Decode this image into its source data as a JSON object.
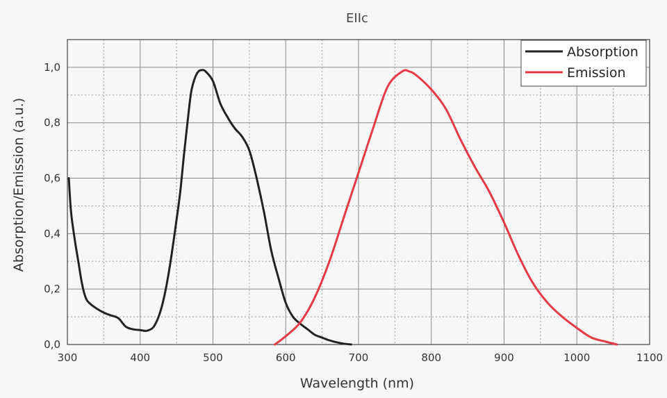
{
  "chart_data": {
    "type": "line",
    "title": "EIIc",
    "xlabel": "Wavelength (nm)",
    "ylabel": "Absorption/Emission (a.u.)",
    "xlim": [
      300,
      1100
    ],
    "ylim": [
      0,
      1.1
    ],
    "xticks": [
      300,
      400,
      500,
      600,
      700,
      800,
      900,
      1000,
      1100
    ],
    "xtick_labels": [
      "300",
      "400",
      "500",
      "600",
      "700",
      "800",
      "900",
      "1000",
      "1100"
    ],
    "yticks": [
      0,
      0.2,
      0.4,
      0.6,
      0.8,
      1.0
    ],
    "ytick_labels": [
      "0,0",
      "0,2",
      "0,4",
      "0,6",
      "0,8",
      "1,0"
    ],
    "grid": true,
    "legend_position": "top-right",
    "series": [
      {
        "name": "Absorption",
        "color": "#222222",
        "points": [
          [
            302,
            0.6
          ],
          [
            305,
            0.48
          ],
          [
            310,
            0.38
          ],
          [
            315,
            0.3
          ],
          [
            320,
            0.22
          ],
          [
            325,
            0.17
          ],
          [
            330,
            0.15
          ],
          [
            340,
            0.13
          ],
          [
            350,
            0.115
          ],
          [
            360,
            0.105
          ],
          [
            370,
            0.095
          ],
          [
            380,
            0.065
          ],
          [
            390,
            0.055
          ],
          [
            400,
            0.052
          ],
          [
            410,
            0.05
          ],
          [
            420,
            0.07
          ],
          [
            430,
            0.14
          ],
          [
            440,
            0.27
          ],
          [
            450,
            0.45
          ],
          [
            455,
            0.55
          ],
          [
            460,
            0.68
          ],
          [
            465,
            0.8
          ],
          [
            470,
            0.91
          ],
          [
            475,
            0.96
          ],
          [
            480,
            0.985
          ],
          [
            485,
            0.99
          ],
          [
            490,
            0.985
          ],
          [
            500,
            0.95
          ],
          [
            510,
            0.87
          ],
          [
            520,
            0.82
          ],
          [
            530,
            0.78
          ],
          [
            540,
            0.75
          ],
          [
            550,
            0.7
          ],
          [
            560,
            0.6
          ],
          [
            570,
            0.48
          ],
          [
            580,
            0.34
          ],
          [
            590,
            0.24
          ],
          [
            600,
            0.15
          ],
          [
            610,
            0.1
          ],
          [
            620,
            0.075
          ],
          [
            630,
            0.055
          ],
          [
            640,
            0.035
          ],
          [
            650,
            0.025
          ],
          [
            660,
            0.015
          ],
          [
            670,
            0.008
          ],
          [
            680,
            0.003
          ],
          [
            690,
            0.0
          ]
        ]
      },
      {
        "name": "Emission",
        "color": "#e63946",
        "points": [
          [
            585,
            0.0
          ],
          [
            600,
            0.03
          ],
          [
            620,
            0.08
          ],
          [
            640,
            0.17
          ],
          [
            660,
            0.3
          ],
          [
            680,
            0.46
          ],
          [
            700,
            0.62
          ],
          [
            720,
            0.78
          ],
          [
            740,
            0.93
          ],
          [
            760,
            0.985
          ],
          [
            770,
            0.985
          ],
          [
            780,
            0.97
          ],
          [
            800,
            0.92
          ],
          [
            820,
            0.85
          ],
          [
            840,
            0.74
          ],
          [
            860,
            0.64
          ],
          [
            880,
            0.55
          ],
          [
            900,
            0.44
          ],
          [
            920,
            0.32
          ],
          [
            940,
            0.22
          ],
          [
            960,
            0.15
          ],
          [
            980,
            0.1
          ],
          [
            1000,
            0.06
          ],
          [
            1020,
            0.025
          ],
          [
            1040,
            0.01
          ],
          [
            1055,
            0.0
          ]
        ]
      }
    ]
  }
}
